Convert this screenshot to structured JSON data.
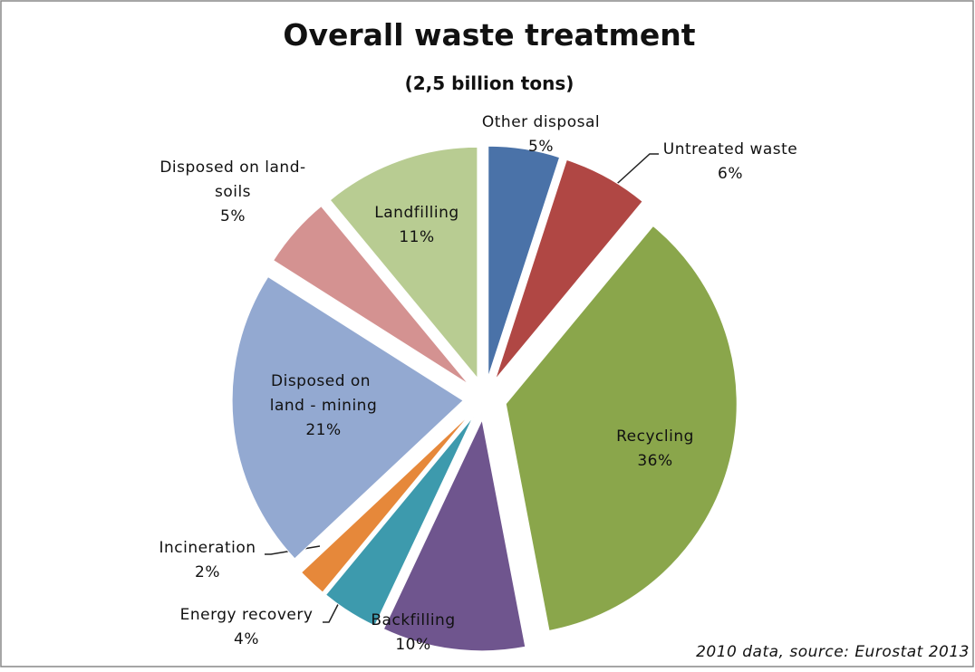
{
  "chart_data": {
    "type": "pie",
    "title": "Overall waste treatment",
    "subtitle": "(2,5 billion tons)",
    "categories": [
      "Other disposal",
      "Untreated waste",
      "Recycling",
      "Backfilling",
      "Energy recovery",
      "Incineration",
      "Disposed on land - mining",
      "Disposed on land-soils",
      "Landfilling"
    ],
    "values": [
      5,
      6,
      36,
      10,
      4,
      2,
      21,
      5,
      11
    ],
    "value_labels": [
      "5%",
      "6%",
      "36%",
      "10%",
      "4%",
      "2%",
      "21%",
      "5%",
      "11%"
    ],
    "colors": [
      "#4a72a8",
      "#b04744",
      "#8aa64b",
      "#6f558e",
      "#3d9aad",
      "#e6883a",
      "#93a9d1",
      "#d49291",
      "#b8cc92"
    ],
    "note": "2010 data, source: Eurostat 2013"
  }
}
